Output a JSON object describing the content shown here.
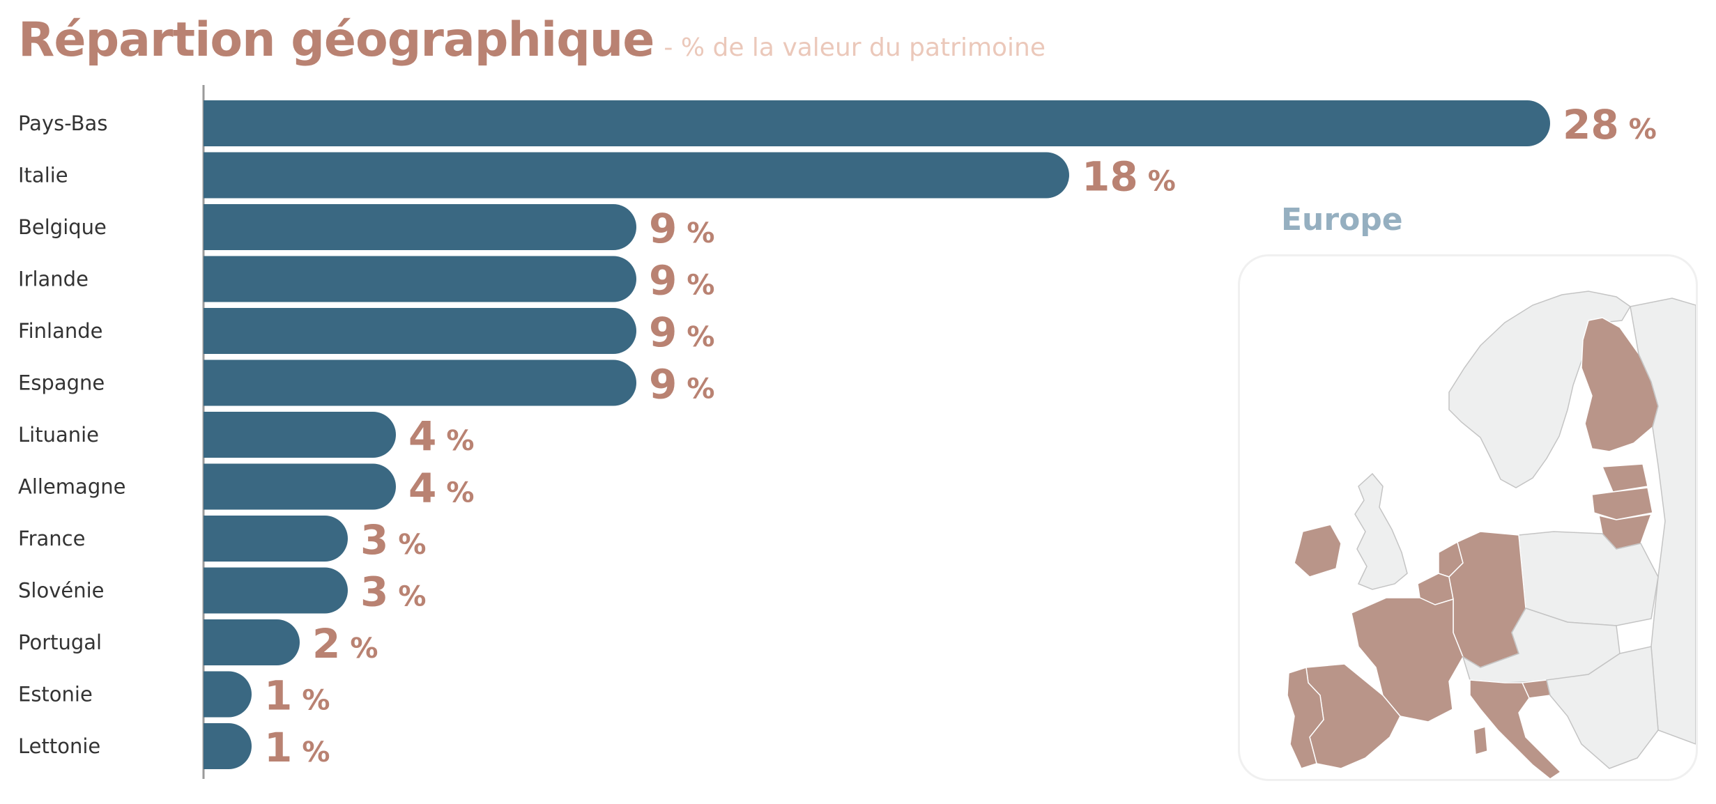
{
  "header": {
    "title": "Répartion géographique",
    "subtitle": "- % de la valeur du patrimoine"
  },
  "chart_data": {
    "type": "bar",
    "orientation": "horizontal",
    "categories": [
      "Pays-Bas",
      "Italie",
      "Belgique",
      "Irlande",
      "Finlande",
      "Espagne",
      "Lituanie",
      "Allemagne",
      "France",
      "Slovénie",
      "Portugal",
      "Estonie",
      "Lettonie"
    ],
    "values": [
      28,
      18,
      9,
      9,
      9,
      9,
      4,
      4,
      3,
      3,
      2,
      1,
      1
    ],
    "value_suffix": "%",
    "xlim": [
      0,
      28
    ],
    "grid": false,
    "bar_color": "#3a6882",
    "label_color": "#b98272"
  },
  "map": {
    "title": "Europe",
    "highlight_color": "#b99589",
    "base_color": "#eeefef",
    "title_color": "#95afc0"
  }
}
